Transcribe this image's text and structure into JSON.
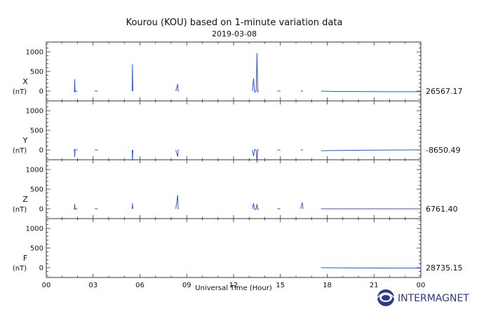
{
  "chart_data": {
    "type": "line",
    "title": "Kourou (KOU) based on 1-minute variation data",
    "subtitle": "2019-03-08",
    "xlabel": "Universal Time (Hour)",
    "x_ticks": [
      "00",
      "03",
      "06",
      "09",
      "12",
      "15",
      "18",
      "21",
      "00"
    ],
    "xlim": [
      0,
      24
    ],
    "unit": "(nT)",
    "ylim": [
      -250,
      1250
    ],
    "y_ticks": [
      0,
      500,
      1000
    ],
    "grid": false,
    "line_color": "#2e5bd6",
    "panels": [
      {
        "name": "X",
        "baseline": "26567.17",
        "segments": [
          [
            [
              1.75,
              0
            ],
            [
              1.8,
              0
            ],
            [
              1.82,
              300
            ],
            [
              1.84,
              -40
            ],
            [
              1.86,
              0
            ],
            [
              2.0,
              0
            ]
          ],
          [
            [
              3.1,
              0
            ],
            [
              3.3,
              0
            ]
          ],
          [
            [
              5.5,
              0
            ],
            [
              5.52,
              680
            ],
            [
              5.55,
              0
            ]
          ],
          [
            [
              8.3,
              0
            ],
            [
              8.42,
              180
            ],
            [
              8.45,
              0
            ],
            [
              8.5,
              0
            ]
          ],
          [
            [
              13.2,
              0
            ],
            [
              13.28,
              320
            ],
            [
              13.35,
              -30
            ],
            [
              13.45,
              0
            ],
            [
              13.5,
              970
            ],
            [
              13.55,
              -20
            ],
            [
              13.6,
              0
            ]
          ],
          [
            [
              14.8,
              0
            ],
            [
              15.0,
              0
            ]
          ],
          [
            [
              16.3,
              0
            ],
            [
              16.45,
              0
            ]
          ],
          [
            [
              17.6,
              0
            ],
            [
              18.5,
              -8
            ],
            [
              20.0,
              -12
            ],
            [
              22.0,
              -15
            ],
            [
              24.0,
              -16
            ]
          ]
        ]
      },
      {
        "name": "Y",
        "baseline": "-8650.49",
        "segments": [
          [
            [
              1.75,
              0
            ],
            [
              1.8,
              0
            ],
            [
              1.82,
              -180
            ],
            [
              1.84,
              20
            ],
            [
              1.86,
              0
            ],
            [
              2.0,
              0
            ]
          ],
          [
            [
              3.1,
              0
            ],
            [
              3.3,
              0
            ]
          ],
          [
            [
              5.5,
              0
            ],
            [
              5.52,
              -270
            ],
            [
              5.55,
              0
            ]
          ],
          [
            [
              8.3,
              0
            ],
            [
              8.42,
              -170
            ],
            [
              8.45,
              0
            ],
            [
              8.5,
              0
            ]
          ],
          [
            [
              13.2,
              0
            ],
            [
              13.28,
              -160
            ],
            [
              13.35,
              10
            ],
            [
              13.45,
              0
            ],
            [
              13.5,
              -320
            ],
            [
              13.55,
              10
            ],
            [
              13.6,
              0
            ]
          ],
          [
            [
              14.8,
              0
            ],
            [
              15.0,
              0
            ]
          ],
          [
            [
              16.3,
              0
            ],
            [
              16.45,
              0
            ]
          ],
          [
            [
              17.6,
              -20
            ],
            [
              19.0,
              -12
            ],
            [
              21.0,
              -5
            ],
            [
              23.0,
              0
            ],
            [
              24.0,
              2
            ]
          ]
        ]
      },
      {
        "name": "Z",
        "baseline": "6761.40",
        "segments": [
          [
            [
              1.75,
              0
            ],
            [
              1.8,
              0
            ],
            [
              1.82,
              120
            ],
            [
              1.84,
              -20
            ],
            [
              1.86,
              0
            ],
            [
              2.0,
              0
            ]
          ],
          [
            [
              3.1,
              0
            ],
            [
              3.3,
              0
            ]
          ],
          [
            [
              5.5,
              0
            ],
            [
              5.52,
              140
            ],
            [
              5.55,
              0
            ]
          ],
          [
            [
              8.3,
              0
            ],
            [
              8.42,
              350
            ],
            [
              8.45,
              0
            ],
            [
              8.5,
              0
            ]
          ],
          [
            [
              13.2,
              0
            ],
            [
              13.28,
              140
            ],
            [
              13.35,
              -20
            ],
            [
              13.45,
              0
            ],
            [
              13.5,
              120
            ],
            [
              13.55,
              -20
            ],
            [
              13.6,
              0
            ]
          ],
          [
            [
              14.8,
              0
            ],
            [
              15.0,
              0
            ]
          ],
          [
            [
              16.3,
              0
            ],
            [
              16.4,
              160
            ],
            [
              16.45,
              0
            ]
          ],
          [
            [
              17.6,
              0
            ],
            [
              20.0,
              0
            ],
            [
              24.0,
              0
            ]
          ]
        ]
      },
      {
        "name": "F",
        "baseline": "28735.15",
        "segments": [
          [
            [
              17.6,
              0
            ],
            [
              19.0,
              -5
            ],
            [
              21.0,
              -10
            ],
            [
              24.0,
              -12
            ]
          ]
        ]
      }
    ]
  },
  "logo": {
    "name": "INTERMAGNET",
    "icon": "intermagnet-globe-icon"
  }
}
